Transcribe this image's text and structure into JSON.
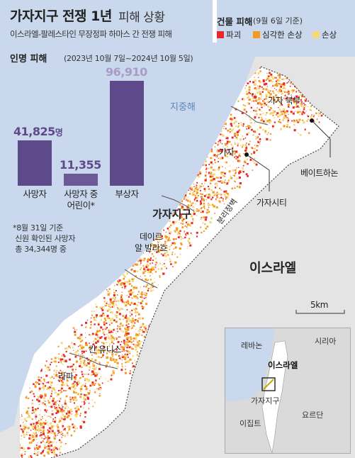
{
  "header": {
    "title": "가자지구 전쟁 1년",
    "title_suffix": "피해 상황",
    "subtitle": "이스라엘-팔레스타인 무장정파 하마스 간 전쟁 피해"
  },
  "casualties": {
    "title": "인명 피해",
    "period": "(2023년 10월 7일~2024년 10월 5일)",
    "bars": [
      {
        "category": "사망자",
        "value": 41825,
        "display": "41,825",
        "unit": "명"
      },
      {
        "category": "사망자 중\n어린이*",
        "value": 11355,
        "display": "11,355",
        "unit": ""
      },
      {
        "category": "부상자",
        "value": 96910,
        "display": "96,910",
        "unit": ""
      }
    ],
    "footnote": "*8월 31일 기준\n 신원 확인된 사망자\n 총 34,344명 중"
  },
  "legend": {
    "title": "건물 피해",
    "note": "(9월 6일 기준)",
    "items": [
      {
        "label": "파괴",
        "color": "#e8282c"
      },
      {
        "label": "심각한 손상",
        "color": "#f39b1f"
      },
      {
        "label": "손상",
        "color": "#f6d77a"
      }
    ]
  },
  "map": {
    "sea_label": "지중해",
    "region_label": "가자지구",
    "country_label": "이스라엘",
    "barrier_label": "분리장벽",
    "scale_label": "5km",
    "places": {
      "north_gaza": "가자 북부",
      "gaza": "가자",
      "beit_hanoun": "베이트하논",
      "gaza_city": "가자시티",
      "deir_al_balah_line1": "데이르",
      "deir_al_balah_line2": "알 발라흐",
      "khan_younis": "칸 유니스",
      "rafah": "라파"
    },
    "colors": {
      "sea": "#c9d8ec",
      "land": "#e4e4e4",
      "strip": "#ffffff",
      "destroyed": "#e8282c",
      "severe": "#f39b1f",
      "damaged": "#f6d77a",
      "chart_bar": "#5e4a8b"
    }
  },
  "inset": {
    "lebanon": "레바논",
    "syria": "시리아",
    "israel": "이스라엘",
    "gaza": "가자지구",
    "jordan": "요르단",
    "egypt": "이집트"
  }
}
